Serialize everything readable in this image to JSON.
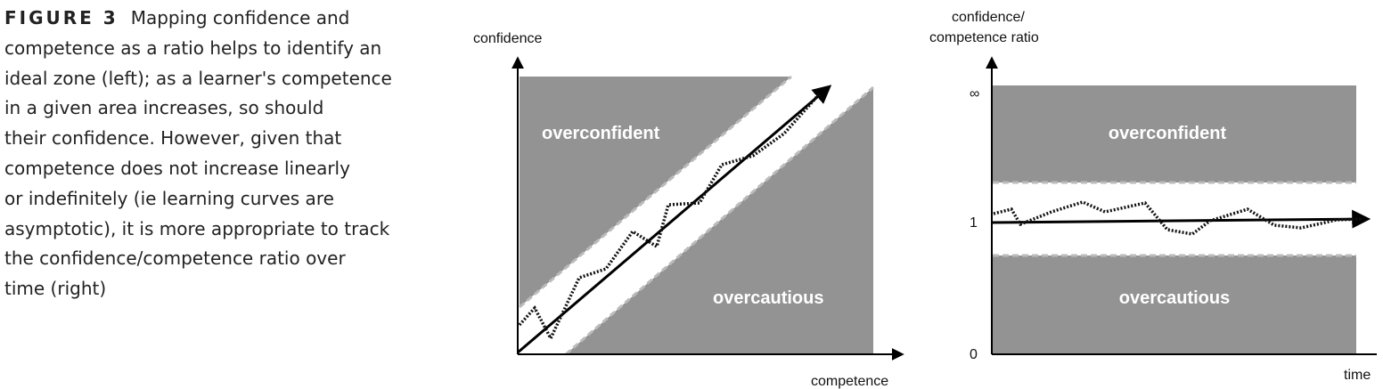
{
  "caption": {
    "label": "FIGURE 3",
    "lines": [
      "Mapping confidence and",
      "competence as a ratio helps to identify an",
      "ideal zone (left); as a learner's competence",
      "in a given area increases, so should",
      "their confidence. However, given that",
      "competence does not increase linearly",
      "or indefinitely (ie learning curves are",
      "asymptotic), it is more appropriate to track",
      "the confidence/competence ratio over",
      "time (right)"
    ]
  },
  "left_diagram": {
    "y_axis_label": "confidence",
    "x_axis_label": "competence",
    "upper_zone": "overconfident",
    "lower_zone": "overcautious"
  },
  "right_diagram": {
    "y_axis_label": [
      "confidence/",
      "competence ratio"
    ],
    "x_axis_label": "time",
    "y_tick_labels": [
      "∞",
      "1",
      "0"
    ],
    "upper_zone": "overconfident",
    "lower_zone": "overcautious"
  }
}
